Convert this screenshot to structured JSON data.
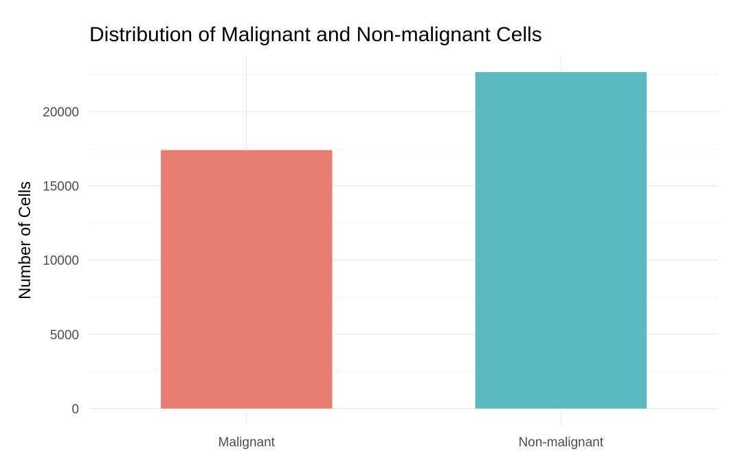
{
  "chart_data": {
    "type": "bar",
    "title": "Distribution of Malignant and Non-malignant Cells",
    "xlabel": "",
    "ylabel": "Number of Cells",
    "categories": [
      "Malignant",
      "Non-malignant"
    ],
    "values": [
      17400,
      22650
    ],
    "colors": [
      "#E67E72",
      "#5BB9C0"
    ],
    "ylim": [
      0,
      22650
    ],
    "y_ticks": [
      0,
      5000,
      10000,
      15000,
      20000
    ],
    "y_tick_labels": [
      "0",
      "5000",
      "10000",
      "15000",
      "20000"
    ],
    "grid": true,
    "legend": "none"
  }
}
